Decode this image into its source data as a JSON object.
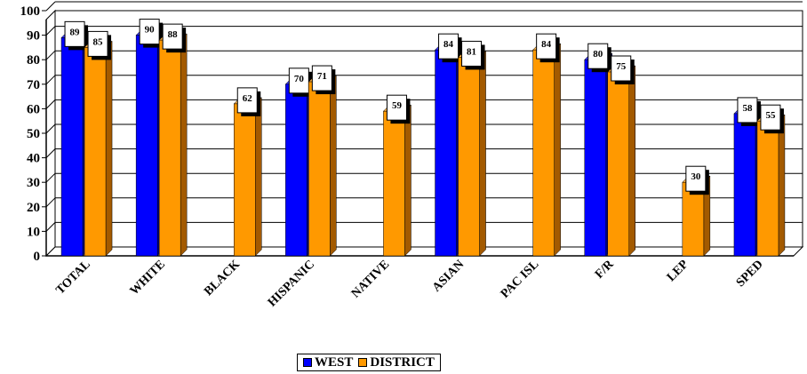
{
  "chart_data": {
    "type": "bar",
    "categories": [
      "TOTAL",
      "WHITE",
      "BLACK",
      "HISPANIC",
      "NATIVE",
      "ASIAN",
      "PAC ISL",
      "F/R",
      "LEP",
      "SPED"
    ],
    "series": [
      {
        "name": "WEST",
        "color": "#0000ff",
        "values": [
          89,
          90,
          null,
          70,
          null,
          84,
          null,
          80,
          null,
          58
        ]
      },
      {
        "name": "DISTRICT",
        "color": "#ff9900",
        "values": [
          85,
          88,
          62,
          71,
          59,
          81,
          84,
          75,
          30,
          55
        ]
      }
    ],
    "ylim": [
      0,
      100
    ],
    "yticks": [
      0,
      10,
      20,
      30,
      40,
      50,
      60,
      70,
      80,
      90,
      100
    ],
    "grid": true,
    "legend_position": "bottom",
    "data_labels": true
  }
}
